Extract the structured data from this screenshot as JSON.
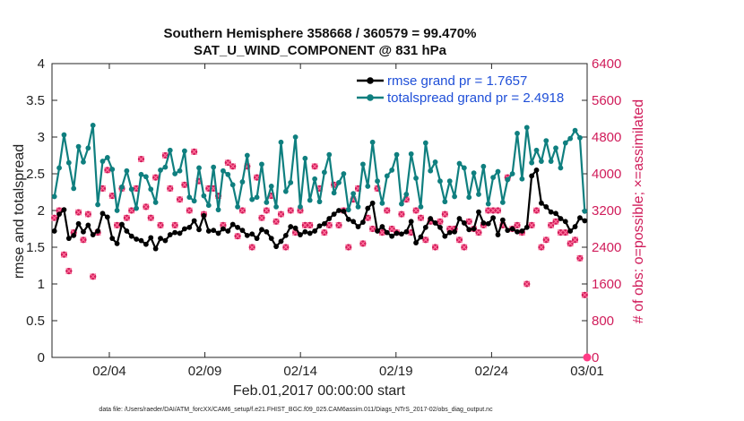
{
  "chart_data": {
    "type": "line",
    "title_line1": "Southern Hemisphere 358668 / 360579 = 99.470%",
    "title_line2": "SAT_U_WIND_COMPONENT @ 831 hPa",
    "xlabel": "Feb.01,2017 00:00:00 start",
    "ylabel": "rmse and totalspread",
    "ylabel_right": "# of obs: o=possible; ×=assimilated",
    "x_range": [
      1,
      29
    ],
    "xticks": [
      4,
      9,
      14,
      19,
      24,
      29
    ],
    "xtick_labels": [
      "02/04",
      "02/09",
      "02/14",
      "02/19",
      "02/24",
      "03/01"
    ],
    "ylim": [
      0,
      4
    ],
    "yticks": [
      "0",
      "0.5",
      "1",
      "1.5",
      "2",
      "2.5",
      "3",
      "3.5",
      "4"
    ],
    "ylim_right": [
      0,
      6400
    ],
    "yticks_right": [
      "0",
      "800",
      "1600",
      "2400",
      "3200",
      "4000",
      "4800",
      "5600",
      "6400"
    ],
    "series": [
      {
        "name": "rmse grand pr = 1.7657",
        "color": "#000000",
        "values": [
          1.72,
          1.95,
          2.01,
          1.62,
          1.66,
          1.82,
          1.71,
          1.8,
          1.67,
          1.72,
          1.96,
          1.91,
          1.62,
          1.55,
          1.81,
          1.72,
          1.65,
          1.61,
          1.59,
          1.54,
          1.63,
          1.48,
          1.62,
          1.59,
          1.67,
          1.7,
          1.69,
          1.75,
          1.77,
          1.86,
          1.74,
          1.93,
          1.72,
          1.73,
          1.69,
          1.75,
          1.72,
          1.81,
          1.77,
          1.73,
          1.66,
          1.68,
          1.62,
          1.74,
          1.71,
          1.62,
          1.51,
          1.58,
          1.66,
          1.78,
          1.76,
          1.67,
          1.71,
          1.69,
          1.72,
          1.79,
          1.82,
          1.89,
          1.95,
          2.0,
          1.99,
          1.88,
          1.85,
          1.78,
          1.84,
          2.03,
          2.1,
          1.72,
          1.78,
          1.7,
          1.65,
          1.69,
          1.68,
          1.71,
          1.85,
          1.56,
          1.64,
          1.77,
          1.89,
          1.83,
          1.77,
          1.65,
          1.7,
          1.71,
          1.89,
          1.83,
          1.74,
          1.75,
          1.98,
          1.83,
          1.82,
          1.9,
          1.67,
          1.87,
          1.73,
          1.75,
          1.71,
          1.72,
          1.77,
          2.47,
          2.55,
          2.1,
          2.05,
          1.98,
          1.96,
          1.89,
          1.85,
          1.72,
          1.78,
          1.9,
          1.86
        ]
      },
      {
        "name": "totalspread grand pr = 2.4918",
        "color": "#0f7f7f",
        "values": [
          2.19,
          2.58,
          3.03,
          2.65,
          2.3,
          2.87,
          2.66,
          2.85,
          3.16,
          2.08,
          2.67,
          2.72,
          2.56,
          2.0,
          2.32,
          2.54,
          2.29,
          2.03,
          2.49,
          2.46,
          2.29,
          2.11,
          2.55,
          2.59,
          2.82,
          2.5,
          2.54,
          2.81,
          2.18,
          2.13,
          2.58,
          2.2,
          2.07,
          2.59,
          2.01,
          2.54,
          2.49,
          2.35,
          2.05,
          2.39,
          2.75,
          2.15,
          2.18,
          2.63,
          2.11,
          2.33,
          2.05,
          2.93,
          2.26,
          2.38,
          3.0,
          2.05,
          2.71,
          2.14,
          2.43,
          2.12,
          2.52,
          2.76,
          2.24,
          2.38,
          2.5,
          2.01,
          2.23,
          2.05,
          2.63,
          2.33,
          2.93,
          2.4,
          2.1,
          2.47,
          2.55,
          2.76,
          2.09,
          2.22,
          2.77,
          2.44,
          2.05,
          2.92,
          2.54,
          2.66,
          2.4,
          2.12,
          2.4,
          2.19,
          2.64,
          2.58,
          2.18,
          2.51,
          2.22,
          2.6,
          2.09,
          2.45,
          2.53,
          2.11,
          2.42,
          2.5,
          3.05,
          2.43,
          3.13,
          2.65,
          2.82,
          2.67,
          2.95,
          2.67,
          2.85,
          2.58,
          2.92,
          2.98,
          3.09,
          2.99,
          1.99
        ]
      }
    ],
    "obs_possible": [
      3040,
      3200,
      2240,
      1880,
      2720,
      3160,
      2560,
      3120,
      1760,
      2720,
      3680,
      4080,
      3520,
      2880,
      3680,
      3040,
      3200,
      3680,
      4320,
      3280,
      3040,
      3920,
      2880,
      4400,
      3680,
      2880,
      3440,
      3760,
      3200,
      4480,
      3840,
      3120,
      3680,
      3680,
      3520,
      2880,
      4240,
      4160,
      2640,
      3200,
      4160,
      2400,
      3920,
      3040,
      3200,
      3520,
      2960,
      3120,
      2400,
      3200,
      2720,
      3200,
      2880,
      2880,
      4160,
      3680,
      2720,
      2880,
      3760,
      2880,
      3200,
      2400,
      3440,
      3680,
      2480,
      3040,
      2800,
      3680,
      2720,
      3200,
      2800,
      2720,
      3120,
      3440,
      2720,
      3200,
      3040,
      2560,
      2960,
      2400,
      2960,
      3120,
      2800,
      2800,
      2560,
      2400,
      2960,
      2800,
      2720,
      2880,
      3200,
      3200,
      3200,
      2880,
      3920,
      2800,
      2880,
      2720,
      1600,
      2880,
      3200,
      2400,
      2560,
      2880,
      2960,
      2720,
      2720,
      2480,
      2560,
      2160,
      1360
    ]
  }
}
